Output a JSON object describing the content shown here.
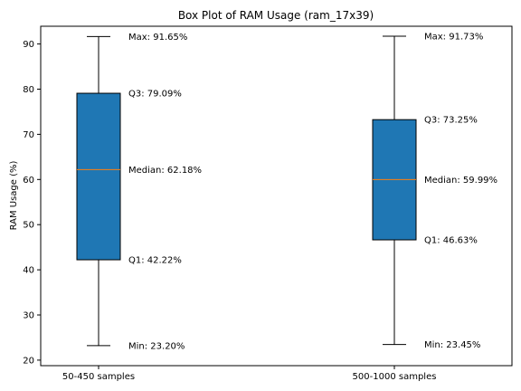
{
  "chart_data": {
    "type": "box",
    "title": "Box Plot of RAM Usage (ram_17x39)",
    "xlabel": "",
    "ylabel": "RAM Usage (%)",
    "ylim": [
      20,
      95
    ],
    "yticks": [
      20,
      30,
      40,
      50,
      60,
      70,
      80,
      90
    ],
    "categories": [
      "50-450 samples",
      "500-1000 samples"
    ],
    "boxes": [
      {
        "min": 23.2,
        "q1": 42.22,
        "median": 62.18,
        "q3": 79.09,
        "max": 91.65,
        "labels": {
          "max": "Max: 91.65%",
          "q3": "Q3: 79.09%",
          "median": "Median: 62.18%",
          "q1": "Q1: 42.22%",
          "min": "Min: 23.20%"
        }
      },
      {
        "min": 23.45,
        "q1": 46.63,
        "median": 59.99,
        "q3": 73.25,
        "max": 91.73,
        "labels": {
          "max": "Max: 91.73%",
          "q3": "Q3: 73.25%",
          "median": "Median: 59.99%",
          "q1": "Q1: 46.63%",
          "min": "Min: 23.45%"
        }
      }
    ],
    "colors": {
      "box_fill": "#1f77b4",
      "median_line": "#ff7f0e",
      "edge": "#000000"
    },
    "grid": false
  }
}
